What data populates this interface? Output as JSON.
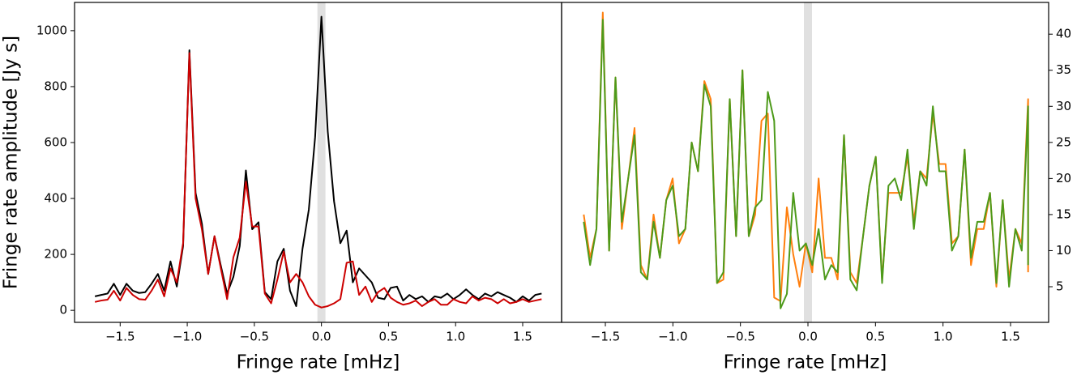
{
  "chart_data": [
    {
      "type": "line",
      "xlabel": "Fringe rate [mHz]",
      "ylabel": "Fringe rate amplitude [Jy s]",
      "xlim": [
        -1.84,
        1.79
      ],
      "ylim": [
        -43,
        1101
      ],
      "xticks": [
        {
          "value": -1.5,
          "label": "−1.5"
        },
        {
          "value": -1.0,
          "label": "−1.0"
        },
        {
          "value": -0.5,
          "label": "−0.5"
        },
        {
          "value": 0,
          "label": "0.0"
        },
        {
          "value": 0.5,
          "label": "0.5"
        },
        {
          "value": 1.0,
          "label": "1.0"
        },
        {
          "value": 1.5,
          "label": "1.5"
        }
      ],
      "yticks": [
        0,
        200,
        400,
        600,
        800,
        1000
      ],
      "yaxis_side": "left",
      "shaded_band": [
        -0.03,
        0.03
      ],
      "x": [
        -1.688,
        -1.641,
        -1.594,
        -1.547,
        -1.5,
        -1.453,
        -1.406,
        -1.359,
        -1.313,
        -1.266,
        -1.219,
        -1.172,
        -1.125,
        -1.078,
        -1.031,
        -0.984,
        -0.938,
        -0.891,
        -0.844,
        -0.797,
        -0.75,
        -0.703,
        -0.656,
        -0.609,
        -0.563,
        -0.516,
        -0.469,
        -0.422,
        -0.375,
        -0.328,
        -0.281,
        -0.234,
        -0.188,
        -0.141,
        -0.094,
        -0.047,
        0,
        0.047,
        0.094,
        0.141,
        0.188,
        0.234,
        0.281,
        0.328,
        0.375,
        0.422,
        0.469,
        0.516,
        0.563,
        0.609,
        0.656,
        0.703,
        0.75,
        0.797,
        0.844,
        0.891,
        0.938,
        0.984,
        1.031,
        1.078,
        1.125,
        1.172,
        1.219,
        1.266,
        1.313,
        1.359,
        1.406,
        1.453,
        1.5,
        1.547,
        1.594,
        1.641
      ],
      "series": [
        {
          "color": "#000000",
          "values": [
            50,
            55,
            60,
            95,
            55,
            95,
            70,
            62,
            65,
            95,
            130,
            70,
            175,
            85,
            230,
            930,
            420,
            310,
            130,
            265,
            160,
            60,
            120,
            230,
            500,
            290,
            315,
            65,
            40,
            175,
            220,
            70,
            15,
            220,
            360,
            620,
            1050,
            640,
            390,
            240,
            285,
            100,
            150,
            125,
            100,
            45,
            40,
            80,
            85,
            35,
            55,
            40,
            50,
            30,
            50,
            45,
            60,
            40,
            55,
            75,
            55,
            40,
            60,
            50,
            65,
            55,
            45,
            30,
            50,
            35,
            55,
            60
          ]
        },
        {
          "color": "#cc0000",
          "values": [
            30,
            35,
            38,
            70,
            35,
            80,
            55,
            40,
            38,
            70,
            110,
            50,
            150,
            100,
            240,
            920,
            400,
            290,
            130,
            265,
            150,
            40,
            190,
            260,
            460,
            300,
            300,
            60,
            25,
            110,
            210,
            100,
            130,
            100,
            50,
            20,
            10,
            15,
            25,
            40,
            170,
            175,
            55,
            85,
            30,
            65,
            80,
            45,
            30,
            20,
            25,
            35,
            15,
            30,
            40,
            20,
            20,
            40,
            30,
            25,
            50,
            35,
            45,
            40,
            25,
            40,
            25,
            30,
            40,
            30,
            35,
            40
          ]
        }
      ]
    },
    {
      "type": "line",
      "xlabel": "Fringe rate [mHz]",
      "xlim": [
        -1.824,
        1.782
      ],
      "ylim": [
        0.06,
        44.4
      ],
      "xticks": [
        {
          "value": -1.5,
          "label": "−1.5"
        },
        {
          "value": -1.0,
          "label": "−1.0"
        },
        {
          "value": -0.5,
          "label": "−0.5"
        },
        {
          "value": 0,
          "label": "0.0"
        },
        {
          "value": 0.5,
          "label": "0.5"
        },
        {
          "value": 1.0,
          "label": "1.0"
        },
        {
          "value": 1.5,
          "label": "1.5"
        }
      ],
      "yticks": [
        5,
        10,
        15,
        20,
        25,
        30,
        35,
        40
      ],
      "yaxis_side": "right",
      "shaded_band": [
        -0.03,
        0.03
      ],
      "x": [
        -1.66,
        -1.613,
        -1.566,
        -1.519,
        -1.472,
        -1.425,
        -1.378,
        -1.331,
        -1.284,
        -1.237,
        -1.19,
        -1.143,
        -1.096,
        -1.049,
        -1.002,
        -0.955,
        -0.908,
        -0.861,
        -0.814,
        -0.767,
        -0.72,
        -0.673,
        -0.626,
        -0.579,
        -0.532,
        -0.485,
        -0.438,
        -0.391,
        -0.344,
        -0.297,
        -0.25,
        -0.203,
        -0.156,
        -0.109,
        -0.062,
        -0.015,
        0.032,
        0.079,
        0.126,
        0.173,
        0.22,
        0.267,
        0.314,
        0.361,
        0.408,
        0.455,
        0.502,
        0.549,
        0.596,
        0.643,
        0.69,
        0.737,
        0.784,
        0.831,
        0.878,
        0.925,
        0.972,
        1.019,
        1.066,
        1.113,
        1.16,
        1.207,
        1.254,
        1.301,
        1.348,
        1.395,
        1.442,
        1.489,
        1.536,
        1.583,
        1.63,
        1.63
      ],
      "series": [
        {
          "color": "#ff7f0e",
          "values": [
            15,
            9,
            13,
            43,
            10,
            34,
            13,
            20,
            27,
            8,
            6,
            15,
            9,
            17,
            20,
            11,
            13,
            25,
            21,
            33.5,
            31,
            5.5,
            6,
            31,
            12,
            35,
            12,
            15,
            28,
            29,
            3.5,
            3,
            16,
            9.5,
            5,
            11,
            7,
            20,
            9,
            9,
            6,
            26,
            7,
            5.5,
            12,
            19,
            23,
            6,
            18,
            18,
            18,
            23,
            14,
            21,
            20,
            29,
            22,
            22,
            11,
            12,
            24,
            8,
            13,
            13,
            18,
            5,
            17,
            6,
            13,
            11,
            31,
            7
          ]
        },
        {
          "color": "#4d9a1a",
          "values": [
            14,
            8,
            13,
            42,
            10,
            34,
            14,
            20,
            26,
            7,
            6,
            14,
            9,
            17,
            19,
            12,
            13,
            25,
            21,
            33,
            30,
            5.5,
            7,
            31,
            12,
            35,
            12,
            16,
            17,
            32,
            28,
            2,
            4,
            18,
            10,
            11,
            8,
            13,
            6,
            8,
            7,
            26,
            6,
            4.5,
            12,
            19,
            23,
            5.5,
            19,
            20,
            17,
            24,
            13,
            21,
            19,
            30,
            21,
            21,
            10,
            12,
            24,
            9,
            14,
            14,
            18,
            5.5,
            17,
            5,
            13,
            10,
            30,
            8
          ]
        }
      ]
    }
  ]
}
